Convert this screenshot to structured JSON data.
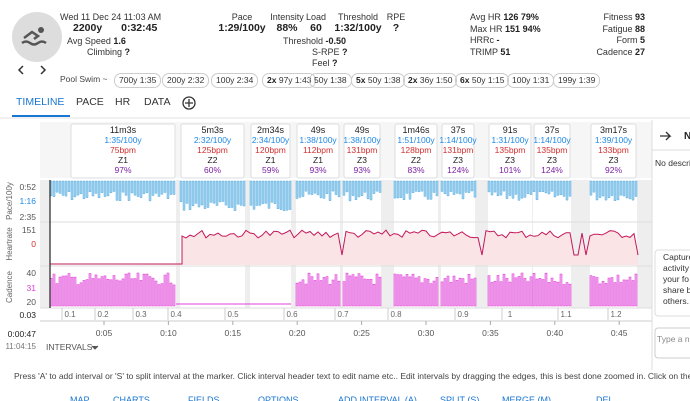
{
  "header": {
    "date": "Wed 11 Dec 24",
    "time": "11:03 AM",
    "distance": "2200y",
    "duration": "0:32:45",
    "avg_speed": {
      "label": "Avg Speed",
      "value": "1.6"
    },
    "climbing": {
      "label": "Climbing",
      "value": "?"
    }
  },
  "stats": [
    {
      "label": "Pace",
      "value": "1:29/100y"
    },
    {
      "label": "Intensity",
      "value": "88%"
    },
    {
      "label": "Load",
      "value": "60"
    },
    {
      "label": "Threshold",
      "value": "1:32/100y"
    },
    {
      "label": "RPE",
      "value": "?"
    }
  ],
  "substats": [
    {
      "label": "Threshold",
      "value": "-0.50"
    },
    {
      "label": "S-RPE",
      "value": "?"
    },
    {
      "label": "Feel",
      "value": "?"
    }
  ],
  "hr": [
    {
      "label": "Avg HR",
      "value": "126",
      "pct": "79%"
    },
    {
      "label": "Max HR",
      "value": "151",
      "pct": "94%"
    },
    {
      "label": "HRRc",
      "value": "-"
    },
    {
      "label": "TRIMP",
      "value": "51"
    }
  ],
  "fitness": [
    {
      "label": "Fitness",
      "value": "93"
    },
    {
      "label": "Fatigue",
      "value": "88"
    },
    {
      "label": "Form",
      "value": "5"
    },
    {
      "label": "Cadence",
      "value": "27"
    }
  ],
  "sport": "Pool Swim",
  "sport_suffix": "~",
  "segments": [
    {
      "label": "700y 1:35"
    },
    {
      "label": "200y 2:32"
    },
    {
      "label": "100y 2:34"
    },
    {
      "count": "2x",
      "label": "97y 1:43"
    },
    {
      "label": "50y 1:38"
    },
    {
      "count": "5x",
      "label": "50y 1:38"
    },
    {
      "count": "2x",
      "label": "36y 1:50"
    },
    {
      "count": "6x",
      "label": "50y 1:15"
    },
    {
      "label": "100y 1:31"
    },
    {
      "label": "199y 1:39"
    }
  ],
  "tabs": [
    "TIMELINE",
    "PACE",
    "HR",
    "DATA"
  ],
  "intervals": [
    {
      "duration": "11m3s",
      "pace": "1:35/100y",
      "hr": "75bpm",
      "zone": "Z1",
      "intensity": "97%"
    },
    {
      "duration": "5m3s",
      "pace": "2:32/100y",
      "hr": "125bpm",
      "zone": "Z2",
      "intensity": "60%"
    },
    {
      "duration": "2m34s",
      "pace": "2:34/100y",
      "hr": "120bpm",
      "zone": "Z1",
      "intensity": "59%"
    },
    {
      "duration": "49s",
      "pace": "1:38/100y",
      "hr": "112bpm",
      "zone": "Z1",
      "intensity": "93%"
    },
    {
      "duration": "49s",
      "pace": "1:38/100y",
      "hr": "131bpm",
      "zone": "Z3",
      "intensity": "93%"
    },
    {
      "duration": "1m46s",
      "pace": "1:51/100y",
      "hr": "128bpm",
      "zone": "Z2",
      "intensity": "83%"
    },
    {
      "duration": "37s",
      "pace": "1:14/100y",
      "hr": "131bpm",
      "zone": "Z3",
      "intensity": "124%"
    },
    {
      "duration": "91s",
      "pace": "1:31/100y",
      "hr": "135bpm",
      "zone": "Z3",
      "intensity": "101%"
    },
    {
      "duration": "37s",
      "pace": "1:14/100y",
      "hr": "135bpm",
      "zone": "Z3",
      "intensity": "124%"
    },
    {
      "duration": "3m17s",
      "pace": "1:39/100y",
      "hr": "133bpm",
      "zone": "Z3",
      "intensity": "92%"
    }
  ],
  "axes": {
    "pace": {
      "label": "Pace/100y",
      "ticks": [
        "0:52",
        "1:16",
        "2:35"
      ]
    },
    "heartrate": {
      "label": "Heartrate",
      "ticks": [
        "151",
        "0"
      ]
    },
    "cadence": {
      "label": "Cadence",
      "ticks": [
        "40",
        "31",
        "20"
      ]
    }
  },
  "laps": [
    "0.1",
    "0.2",
    "0.3",
    "0.4",
    "0.5",
    "0.6",
    "0.7",
    "0.8",
    "0.9",
    "1",
    "1.1",
    "1.2"
  ],
  "time_ticks": [
    "0:05",
    "0:10",
    "0:15",
    "0:20",
    "0:25",
    "0:30",
    "0:35",
    "0:40",
    "0:45"
  ],
  "cursor": {
    "elapsed": "0:00:47",
    "clock": "11:04:15",
    "distance": "0.03"
  },
  "intervals_menu": "INTERVALS",
  "side_panel": {
    "title": "N",
    "description": "No descri",
    "prompt": [
      "Capture",
      "activity",
      "your fo",
      "share b",
      "others."
    ],
    "input": "Type a n"
  },
  "help": "Press 'A' to add interval or 'S' to split interval at the marker. Click interval header text to edit name etc.. Edit intervals by dragging the edges, this is best done zoomed in. Click on the chart to",
  "bottom_tabs": [
    "MAP",
    "CHARTS",
    "FIELDS",
    "OPTIONS",
    "ADD INTERVAL (A)",
    "SPLIT (S)",
    "MERGE (M)",
    "DEL"
  ]
}
